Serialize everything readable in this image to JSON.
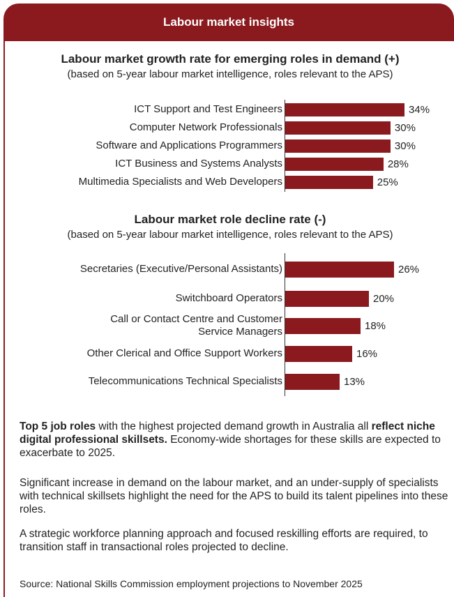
{
  "header": {
    "title": "Labour market insights"
  },
  "chart_data": [
    {
      "type": "hbar",
      "title": "Labour market growth rate for emerging roles in demand (+)",
      "subtitle": "(based on 5-year labour market intelligence, roles relevant to the APS)",
      "categories": [
        "ICT Support and Test Engineers",
        "Computer Network Professionals",
        "Software and Applications Programmers",
        "ICT Business and Systems Analysts",
        "Multimedia Specialists and Web Developers"
      ],
      "values": [
        34,
        30,
        30,
        28,
        25
      ],
      "value_labels": [
        "34%",
        "30%",
        "30%",
        "28%",
        "25%"
      ],
      "color": "#8b1a1f"
    },
    {
      "type": "hbar",
      "title": "Labour market role decline rate (-)",
      "subtitle": "(based on 5-year labour market intelligence, roles relevant to the APS)",
      "categories": [
        "Secretaries (Executive/Personal Assistants)",
        "Switchboard Operators",
        "Call or Contact Centre and Customer\nService Managers",
        "Other Clerical and Office Support Workers",
        "Telecommunications Technical Specialists"
      ],
      "values": [
        26,
        20,
        18,
        16,
        13
      ],
      "value_labels": [
        "26%",
        "20%",
        "18%",
        "16%",
        "13%"
      ],
      "color": "#8b1a1f"
    }
  ],
  "paragraphs": [
    [
      "Top 5 job roles",
      " with the highest projected demand growth  in Australia all ",
      "reflect niche digital professional skillsets.",
      " Economy-wide shortages for these skills are expected to  exacerbate to 2025."
    ],
    [
      "Significant increase in demand on the labour market, and  an under-supply of specialists with technical skillsets  highlight the need for the APS to build its talent pipelines  into these roles."
    ],
    [
      "A strategic workforce planning approach and focused  reskilling efforts are required, to transition staff in transactional roles projected to decline."
    ]
  ],
  "source": "Source: National Skills Commission employment projections to November 2025"
}
